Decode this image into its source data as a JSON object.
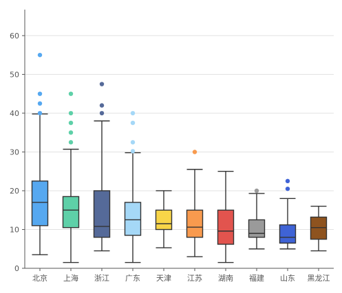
{
  "chart_data": {
    "type": "box",
    "title": "",
    "xlabel": "",
    "ylabel": "",
    "ylim": [
      0,
      66
    ],
    "yticks": [
      0,
      10,
      20,
      30,
      40,
      50,
      60
    ],
    "grid": true,
    "categories": [
      "北京",
      "上海",
      "浙江",
      "广东",
      "天津",
      "江苏",
      "湖南",
      "福建",
      "山东",
      "黑龙江"
    ],
    "series": [
      {
        "min": 3.5,
        "q1": 11,
        "median": 17,
        "q3": 22.5,
        "max": 39.8,
        "outliers": [
          40,
          42.5,
          45,
          55
        ],
        "color": "#56a8f0",
        "outlier_color": "#56a8f0"
      },
      {
        "min": 1.5,
        "q1": 10.5,
        "median": 15,
        "q3": 18.5,
        "max": 30.7,
        "outliers": [
          32.5,
          35,
          37.5,
          40,
          45
        ],
        "color": "#5ed0a8",
        "outlier_color": "#5ed0a8"
      },
      {
        "min": 4.5,
        "q1": 8,
        "median": 10.8,
        "q3": 20,
        "max": 38,
        "outliers": [
          40,
          42,
          47.5
        ],
        "color": "#556a99",
        "outlier_color": "#556a99"
      },
      {
        "min": 1.5,
        "q1": 8.5,
        "median": 12.5,
        "q3": 17,
        "max": 29.8,
        "outliers": [
          30.2,
          32.5,
          37.5,
          40
        ],
        "color": "#a5d8f7",
        "outlier_color": "#a5d8f7"
      },
      {
        "min": 5.3,
        "q1": 10,
        "median": 11.5,
        "q3": 15,
        "max": 20,
        "outliers": [],
        "color": "#f8d548",
        "outlier_color": "#f8d548"
      },
      {
        "min": 3,
        "q1": 8,
        "median": 10.6,
        "q3": 15,
        "max": 25.5,
        "outliers": [
          30
        ],
        "color": "#f89a4e",
        "outlier_color": "#f89a4e"
      },
      {
        "min": 1.5,
        "q1": 6.2,
        "median": 9.6,
        "q3": 15,
        "max": 25,
        "outliers": [],
        "color": "#e2544e",
        "outlier_color": "#e2544e"
      },
      {
        "min": 5,
        "q1": 8,
        "median": 9,
        "q3": 12.5,
        "max": 19.3,
        "outliers": [
          20
        ],
        "color": "#9a9a9a",
        "outlier_color": "#9a9a9a"
      },
      {
        "min": 5,
        "q1": 6.5,
        "median": 8,
        "q3": 11.2,
        "max": 18,
        "outliers": [
          20.5,
          22.5
        ],
        "color": "#3f63d6",
        "outlier_color": "#3f63d6"
      },
      {
        "min": 4.5,
        "q1": 7.5,
        "median": 10.5,
        "q3": 13.2,
        "max": 16,
        "outliers": [],
        "color": "#8e531f",
        "outlier_color": "#8e531f"
      }
    ],
    "colors": {
      "axis": "#555555",
      "grid": "#e1e1e1",
      "stroke": "#333333",
      "tick_label": "#555555"
    }
  }
}
